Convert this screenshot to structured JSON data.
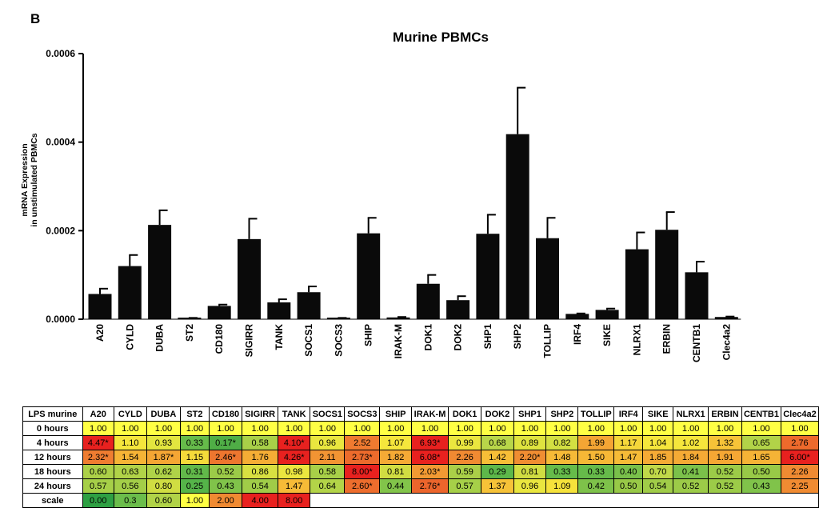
{
  "panel_label": "B",
  "chart_data": {
    "type": "bar",
    "title": "Murine PBMCs",
    "ylabel_lines": [
      "mRNA Expression",
      "in unstimulated PBMCs"
    ],
    "xlabel": "",
    "ylim": [
      0,
      0.0006
    ],
    "yticks": [
      0,
      0.0002,
      0.0004,
      0.0006
    ],
    "ytick_labels": [
      "0.0000",
      "0.0002",
      "0.0004",
      "0.0006"
    ],
    "categories": [
      "A20",
      "CYLD",
      "DUBA",
      "ST2",
      "CD180",
      "SIGIRR",
      "TANK",
      "SOCS1",
      "SOCS3",
      "SHIP",
      "IRAK-M",
      "DOK1",
      "DOK2",
      "SHP1",
      "SHP2",
      "TOLLIP",
      "IRF4",
      "SIKE",
      "NLRX1",
      "ERBIN",
      "CENTB1",
      "Clec4a2"
    ],
    "values": [
      5.7e-05,
      0.00012,
      0.000213,
      2e-06,
      3e-05,
      0.000181,
      3.8e-05,
      6.1e-05,
      2e-06,
      0.000194,
      4e-06,
      8e-05,
      4.3e-05,
      0.000193,
      0.000418,
      0.000183,
      1.2e-05,
      2.1e-05,
      0.000158,
      0.000202,
      0.000106,
      5e-06
    ],
    "errors": [
      1.2e-05,
      2.5e-05,
      3.3e-05,
      1e-06,
      3e-06,
      4.6e-05,
      7e-06,
      1.3e-05,
      1e-06,
      3.5e-05,
      1e-06,
      2e-05,
      9e-06,
      4.3e-05,
      0.000105,
      4.6e-05,
      1e-06,
      3e-06,
      3.8e-05,
      4e-05,
      2.4e-05,
      1e-06
    ]
  },
  "table": {
    "corner": "LPS murine",
    "columns": [
      "A20",
      "CYLD",
      "DUBA",
      "ST2",
      "CD180",
      "SIGIRR",
      "TANK",
      "SOCS1",
      "SOCS3",
      "SHIP",
      "IRAK-M",
      "DOK1",
      "DOK2",
      "SHP1",
      "SHP2",
      "TOLLIP",
      "IRF4",
      "SIKE",
      "NLRX1",
      "ERBIN",
      "CENTB1",
      "Clec4a2"
    ],
    "rows": [
      {
        "label": "0 hours",
        "values": [
          "1.00",
          "1.00",
          "1.00",
          "1.00",
          "1.00",
          "1.00",
          "1.00",
          "1.00",
          "1.00",
          "1.00",
          "1.00",
          "1.00",
          "1.00",
          "1.00",
          "1.00",
          "1.00",
          "1.00",
          "1.00",
          "1.00",
          "1.00",
          "1.00",
          "1.00"
        ],
        "colors": [
          "#ffff44",
          "#ffff44",
          "#ffff44",
          "#ffff44",
          "#ffff44",
          "#ffff44",
          "#ffff44",
          "#ffff44",
          "#ffff44",
          "#ffff44",
          "#ffff44",
          "#ffff44",
          "#ffff44",
          "#ffff44",
          "#ffff44",
          "#ffff44",
          "#ffff44",
          "#ffff44",
          "#ffff44",
          "#ffff44",
          "#ffff44",
          "#ffff44"
        ]
      },
      {
        "label": "4 hours",
        "values": [
          "4.47*",
          "1.10",
          "0.93",
          "0.33",
          "0.17*",
          "0.58",
          "4.10*",
          "0.96",
          "2.52",
          "1.07",
          "6.93*",
          "0.99",
          "0.68",
          "0.89",
          "0.82",
          "1.99",
          "1.17",
          "1.04",
          "1.02",
          "1.32",
          "0.65",
          "2.76"
        ],
        "colors": [
          "#e8211f",
          "#f5e63c",
          "#e3e63f",
          "#66bb4a",
          "#4fae46",
          "#a8d048",
          "#e8211f",
          "#e9e63f",
          "#ef7a30",
          "#f5e63c",
          "#e8211f",
          "#eae63f",
          "#b9d649",
          "#dfe33f",
          "#d3df42",
          "#f4a534",
          "#f5d73a",
          "#f5e63c",
          "#f5e63c",
          "#f6c338",
          "#b2d348",
          "#ed6a2c"
        ]
      },
      {
        "label": "12 hours",
        "values": [
          "2.32*",
          "1.54",
          "1.87*",
          "1.15",
          "2.46*",
          "1.76",
          "4.26*",
          "2.11",
          "2.73*",
          "1.82",
          "6.08*",
          "2.26",
          "1.42",
          "2.20*",
          "1.48",
          "1.50",
          "1.47",
          "1.85",
          "1.84",
          "1.91",
          "1.65",
          "6.00*"
        ],
        "colors": [
          "#ef7d31",
          "#f6b436",
          "#f5a634",
          "#f5da3a",
          "#ee762f",
          "#f5ad35",
          "#e8211f",
          "#f29433",
          "#ec6b2c",
          "#f5aa35",
          "#e8211f",
          "#f08a32",
          "#f6be37",
          "#f08d32",
          "#f6ba37",
          "#f6b836",
          "#f6bb37",
          "#f5aa35",
          "#f5aa35",
          "#f5a734",
          "#f5b336",
          "#e8211f"
        ]
      },
      {
        "label": "18 hours",
        "values": [
          "0.60",
          "0.63",
          "0.62",
          "0.31",
          "0.52",
          "0.86",
          "0.98",
          "0.58",
          "8.00*",
          "0.81",
          "2.03*",
          "0.59",
          "0.29",
          "0.81",
          "0.33",
          "0.33",
          "0.40",
          "0.70",
          "0.41",
          "0.52",
          "0.50",
          "2.26"
        ],
        "colors": [
          "#acd048",
          "#b1d348",
          "#afd248",
          "#62b94a",
          "#9ccb48",
          "#d8e041",
          "#ece63f",
          "#a8d048",
          "#e8211f",
          "#d1dd42",
          "#f29a33",
          "#aacf48",
          "#5db84a",
          "#d1dd42",
          "#66bb4a",
          "#66bb4a",
          "#79c04a",
          "#c0d849",
          "#7bc14a",
          "#9ccb48",
          "#98c947",
          "#f08a32"
        ]
      },
      {
        "label": "24 hours",
        "values": [
          "0.57",
          "0.56",
          "0.80",
          "0.25",
          "0.43",
          "0.54",
          "1.47",
          "0.64",
          "2.60*",
          "0.44",
          "2.76*",
          "0.57",
          "1.37",
          "0.96",
          "1.09",
          "0.42",
          "0.50",
          "0.54",
          "0.52",
          "0.52",
          "0.43",
          "2.25"
        ],
        "colors": [
          "#a6cf48",
          "#a4ce48",
          "#d0dd42",
          "#55b449",
          "#80c34a",
          "#a0cc48",
          "#f6bb37",
          "#b3d448",
          "#ed6d2d",
          "#82c44a",
          "#ec652c",
          "#a6cf48",
          "#f6c238",
          "#e9e63f",
          "#f5e23b",
          "#7ec24a",
          "#98c947",
          "#a0cc48",
          "#9ccb48",
          "#9ccb48",
          "#80c34a",
          "#f08b32"
        ]
      },
      {
        "label": "scale",
        "values": [
          "0.00",
          "0.3",
          "0.60",
          "1.00",
          "2.00",
          "4.00",
          "8.00"
        ],
        "colors": [
          "#2ea043",
          "#6bbd4b",
          "#b1d348",
          "#ffff44",
          "#f08a32",
          "#e8211f",
          "#e8211f"
        ]
      }
    ]
  }
}
